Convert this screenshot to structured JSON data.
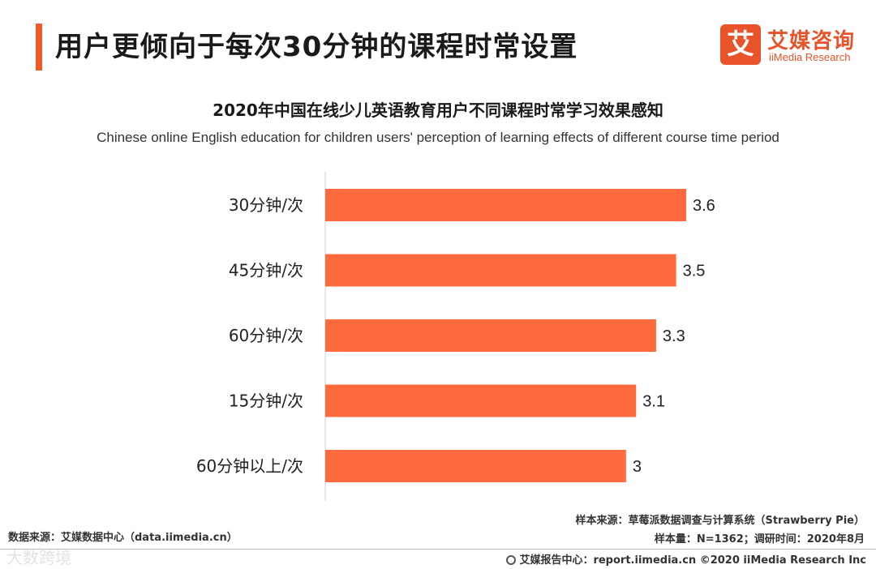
{
  "header": {
    "title": "用户更倾向于每次30分钟的课程时常设置",
    "accent_color": "#f05a28"
  },
  "logo": {
    "mark": "艾",
    "cn": "艾媒咨询",
    "en": "iiMedia Research",
    "color": "#e8532a"
  },
  "chart_data": {
    "type": "bar",
    "orientation": "horizontal",
    "title": "2020年中国在线少儿英语教育用户不同课程时常学习效果感知",
    "subtitle": "Chinese online English education for children users' perception of learning effects of different course time period",
    "categories": [
      "30分钟/次",
      "45分钟/次",
      "60分钟/次",
      "15分钟/次",
      "60分钟以上/次"
    ],
    "values": [
      3.6,
      3.5,
      3.3,
      3.1,
      3
    ],
    "value_labels": [
      "3.6",
      "3.5",
      "3.3",
      "3.1",
      "3"
    ],
    "bar_color": "#ff6b3d",
    "xlim": [
      0,
      3.6
    ],
    "grid": false,
    "legend": "none"
  },
  "notes": {
    "source_left": "数据来源：艾媒数据中心（data.iimedia.cn）",
    "sample_source": "样本来源：草莓派数据调查与计算系统（Strawberry Pie）",
    "sample_size": "样本量：N=1362；调研时间：2020年8月"
  },
  "footer": {
    "text": "艾媒报告中心：report.iimedia.cn  ©2020  iiMedia Research  Inc",
    "watermark": "大数跨境"
  }
}
